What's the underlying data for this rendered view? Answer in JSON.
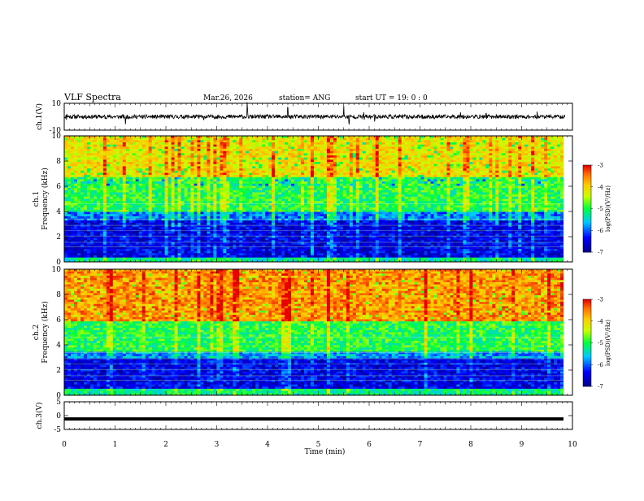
{
  "header": {
    "title": "VLF Spectra",
    "date": "Mar.26, 2026",
    "station": "station= ANG",
    "start_time": "start  UT =   19: 0  : 0"
  },
  "chart_data": [
    {
      "type": "line",
      "name": "ch1-waveform",
      "ylabel": "ch.1(V)",
      "xlim": [
        0,
        10
      ],
      "ylim": [
        -10,
        10
      ],
      "ytick_labels": [
        "10",
        "-10"
      ],
      "baseline": 0,
      "noise_amplitude": 1.5,
      "spike_times": [
        0.05,
        0.8,
        1.2,
        2.75,
        3.6,
        4.4,
        5.5,
        5.6,
        5.9,
        6.1,
        7.8,
        8.3,
        9.3
      ]
    },
    {
      "type": "heatmap",
      "name": "ch1-spectrogram",
      "ylabel": "ch.1",
      "ylabel2": "Frequency (kHz)",
      "xlim": [
        0,
        9.85
      ],
      "ylim": [
        0,
        10
      ],
      "ytick_labels": [
        "0",
        "2",
        "4",
        "6",
        "8",
        "10"
      ],
      "colorbar": {
        "label": "log(PSD)(V²/Hz)",
        "range": [
          -7,
          -3
        ],
        "ticks": [
          "-3",
          "-4",
          "-5",
          "-6",
          "-7"
        ]
      },
      "bands": [
        {
          "from": 0.0,
          "to": 0.4,
          "level": -5.3
        },
        {
          "from": 0.4,
          "to": 3.2,
          "level": -6.5
        },
        {
          "from": 3.2,
          "to": 4.0,
          "level": -5.9
        },
        {
          "from": 4.0,
          "to": 6.7,
          "level": -5.0
        },
        {
          "from": 6.7,
          "to": 10.0,
          "level": -4.1
        }
      ]
    },
    {
      "type": "heatmap",
      "name": "ch2-spectrogram",
      "ylabel": "ch.2",
      "ylabel2": "Frequency (kHz)",
      "xlim": [
        0,
        9.85
      ],
      "ylim": [
        0,
        10
      ],
      "ytick_labels": [
        "0",
        "2",
        "4",
        "6",
        "8",
        "10"
      ],
      "colorbar": {
        "label": "log(PSD)(V²/Hz)",
        "range": [
          -7,
          -3
        ],
        "ticks": [
          "-3",
          "-4",
          "-5",
          "-6",
          "-7"
        ]
      },
      "bands": [
        {
          "from": 0.0,
          "to": 0.5,
          "level": -5.2
        },
        {
          "from": 0.5,
          "to": 2.9,
          "level": -6.5
        },
        {
          "from": 2.9,
          "to": 3.5,
          "level": -5.8
        },
        {
          "from": 3.5,
          "to": 5.8,
          "level": -5.0
        },
        {
          "from": 5.8,
          "to": 10.0,
          "level": -3.6
        }
      ]
    },
    {
      "type": "line",
      "name": "ch3-waveform",
      "ylabel": "ch.3(V)",
      "xlabel": "Time (min)",
      "xlim": [
        0,
        10
      ],
      "ylim": [
        -5,
        5
      ],
      "ytick_labels": [
        "5",
        "0",
        "-5"
      ],
      "baseline": -1.2,
      "xtick_labels": [
        "0",
        "1",
        "2",
        "3",
        "4",
        "5",
        "6",
        "7",
        "8",
        "9",
        "10"
      ]
    }
  ]
}
